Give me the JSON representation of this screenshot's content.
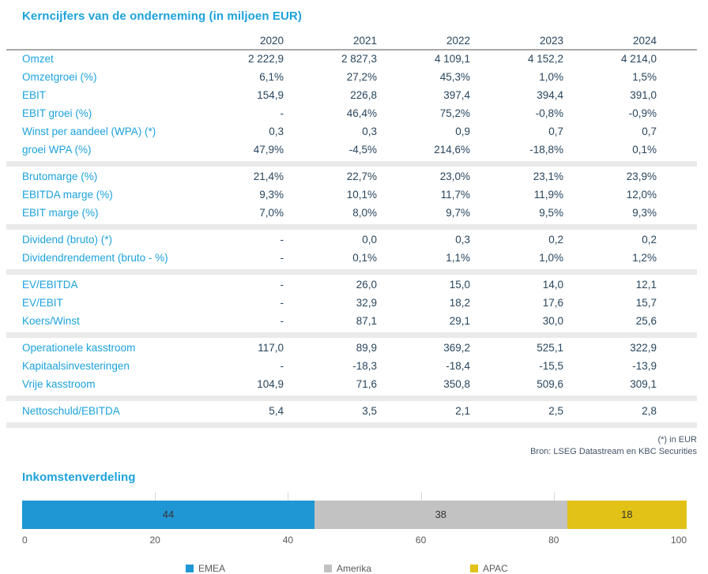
{
  "colors": {
    "accent_blue": "#1ca2dc",
    "value_navy": "#28455e",
    "bar_blue": "#2097d5",
    "bar_gray": "#c2c2c2",
    "bar_yellow": "#e2c217",
    "section_band": "#eaeaea",
    "header_rule": "#a9a9a9",
    "gridline": "#d9d9d9",
    "axis_text": "#595959"
  },
  "table": {
    "title": "Kerncijfers van de onderneming (in miljoen EUR)",
    "years": [
      "2020",
      "2021",
      "2022",
      "2023",
      "2024"
    ],
    "sections": [
      {
        "rows": [
          {
            "label": "Omzet",
            "values": [
              "2 222,9",
              "2 827,3",
              "4 109,1",
              "4 152,2",
              "4 214,0"
            ]
          },
          {
            "label": "Omzetgroei (%)",
            "values": [
              "6,1%",
              "27,2%",
              "45,3%",
              "1,0%",
              "1,5%"
            ]
          },
          {
            "label": "EBIT",
            "values": [
              "154,9",
              "226,8",
              "397,4",
              "394,4",
              "391,0"
            ]
          },
          {
            "label": "EBIT groei (%)",
            "values": [
              "-",
              "46,4%",
              "75,2%",
              "-0,8%",
              "-0,9%"
            ]
          },
          {
            "label": "Winst per aandeel (WPA) (*)",
            "values": [
              "0,3",
              "0,3",
              "0,9",
              "0,7",
              "0,7"
            ]
          },
          {
            "label": "groei WPA (%)",
            "values": [
              "47,9%",
              "-4,5%",
              "214,6%",
              "-18,8%",
              "0,1%"
            ]
          }
        ]
      },
      {
        "rows": [
          {
            "label": "Brutomarge (%)",
            "values": [
              "21,4%",
              "22,7%",
              "23,0%",
              "23,1%",
              "23,9%"
            ]
          },
          {
            "label": "EBITDA marge (%)",
            "values": [
              "9,3%",
              "10,1%",
              "11,7%",
              "11,9%",
              "12,0%"
            ]
          },
          {
            "label": "EBIT marge (%)",
            "values": [
              "7,0%",
              "8,0%",
              "9,7%",
              "9,5%",
              "9,3%"
            ]
          }
        ]
      },
      {
        "rows": [
          {
            "label": "Dividend (bruto) (*)",
            "values": [
              "-",
              "0,0",
              "0,3",
              "0,2",
              "0,2"
            ]
          },
          {
            "label": "Dividendrendement (bruto - %)",
            "values": [
              "-",
              "0,1%",
              "1,1%",
              "1,0%",
              "1,2%"
            ]
          }
        ]
      },
      {
        "rows": [
          {
            "label": "EV/EBITDA",
            "values": [
              "-",
              "26,0",
              "15,0",
              "14,0",
              "12,1"
            ]
          },
          {
            "label": "EV/EBIT",
            "values": [
              "-",
              "32,9",
              "18,2",
              "17,6",
              "15,7"
            ]
          },
          {
            "label": "Koers/Winst",
            "values": [
              "-",
              "87,1",
              "29,1",
              "30,0",
              "25,6"
            ]
          }
        ]
      },
      {
        "rows": [
          {
            "label": "Operationele kasstroom",
            "values": [
              "117,0",
              "89,9",
              "369,2",
              "525,1",
              "322,9"
            ]
          },
          {
            "label": "Kapitaalsinvesteringen",
            "values": [
              "-",
              "-18,3",
              "-18,4",
              "-15,5",
              "-13,9"
            ]
          },
          {
            "label": "Vrije kasstroom",
            "values": [
              "104,9",
              "71,6",
              "350,8",
              "509,6",
              "309,1"
            ]
          }
        ]
      },
      {
        "rows": [
          {
            "label": "Nettoschuld/EBITDA",
            "values": [
              "5,4",
              "3,5",
              "2,1",
              "2,5",
              "2,8"
            ]
          }
        ]
      }
    ],
    "footnote": "(*) in EUR",
    "source": "Bron: LSEG Datastream en KBC Securities"
  },
  "chart_data": {
    "type": "bar",
    "orientation": "horizontal-stacked",
    "title": "Inkomstenverdeling",
    "series": [
      {
        "name": "EMEA",
        "value": 44,
        "color": "#2097d5"
      },
      {
        "name": "Amerika",
        "value": 38,
        "color": "#c2c2c2"
      },
      {
        "name": "APAC",
        "value": 18,
        "color": "#e2c217"
      }
    ],
    "xlim": [
      0,
      100
    ],
    "tick_labels": [
      "0",
      "20",
      "40",
      "60",
      "80",
      "100"
    ],
    "ticks": [
      0,
      20,
      40,
      60,
      80,
      100
    ],
    "gridlines": [
      20,
      40,
      60,
      80
    ],
    "grid": true,
    "legend_position": "bottom"
  }
}
